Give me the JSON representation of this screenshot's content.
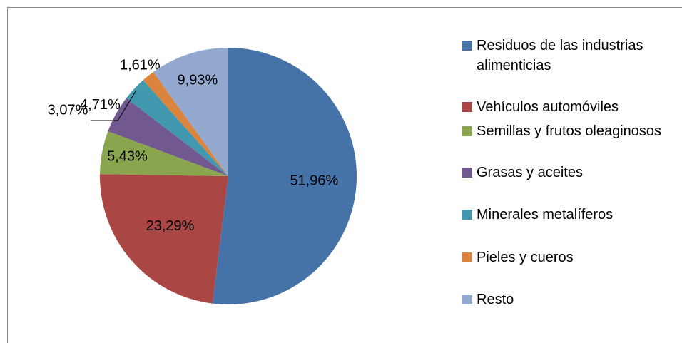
{
  "chart_data": {
    "type": "pie",
    "categories": [
      "Residuos de las industrias alimenticias",
      "Vehículos automóviles",
      "Semillas y frutos oleaginosos",
      "Grasas y aceites",
      "Minerales metalíferos",
      "Pieles y cueros",
      "Resto"
    ],
    "values": [
      51.96,
      23.29,
      5.43,
      4.71,
      3.07,
      1.61,
      9.93
    ],
    "value_labels": [
      "51,96%",
      "23,29%",
      "5,43%",
      "4,71%",
      "3,07%",
      "1,61%",
      "9,93%"
    ],
    "colors": [
      "#4572a7",
      "#aa4643",
      "#89a54e",
      "#71588f",
      "#4198af",
      "#db843d",
      "#93a9cf"
    ],
    "legend": "right"
  }
}
